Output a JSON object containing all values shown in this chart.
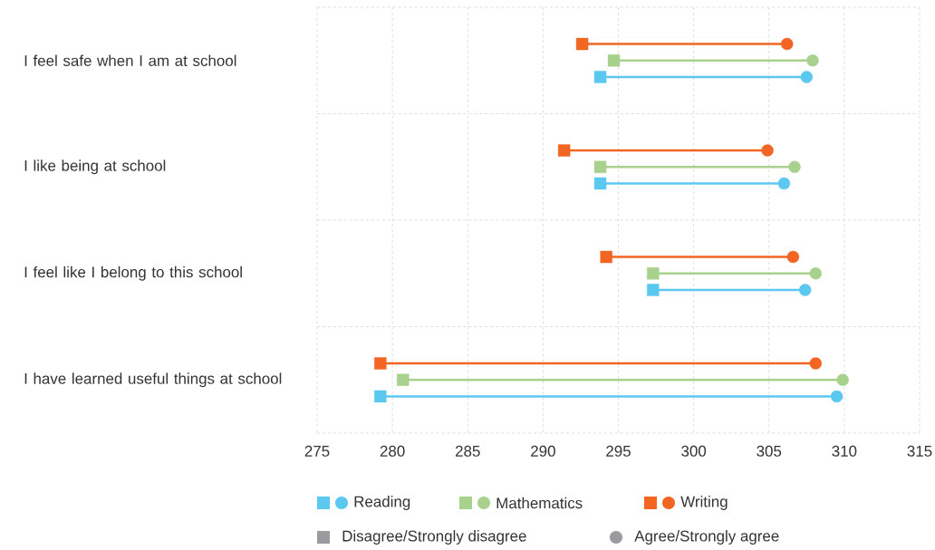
{
  "chart_data": {
    "type": "scatter",
    "orientation": "horizontal",
    "categories": [
      "I feel safe when I am at school",
      "I like being at school",
      "I feel like I belong to this school",
      "I have learned useful things at school"
    ],
    "series": [
      {
        "name": "Reading",
        "color": "#5bc8f0",
        "marker": "square",
        "values": [
          293.8,
          293.8,
          297.3,
          279.2
        ]
      },
      {
        "color": "#5bc8f0",
        "marker": "circle",
        "values": [
          307.5,
          306.0,
          307.4,
          309.5
        ]
      },
      {
        "name": "Mathematics",
        "color": "#a9d18e",
        "marker": "square",
        "values": [
          294.7,
          293.8,
          297.3,
          280.7
        ]
      },
      {
        "color": "#a9d18e",
        "marker": "circle",
        "values": [
          307.9,
          306.7,
          308.1,
          309.9
        ]
      },
      {
        "name": "Writing",
        "color": "#f26522",
        "marker": "square",
        "values": [
          292.6,
          291.4,
          294.2,
          279.2
        ]
      },
      {
        "color": "#f26522",
        "marker": "circle",
        "values": [
          306.2,
          304.9,
          306.6,
          308.1
        ]
      }
    ],
    "xlim": [
      275,
      315
    ],
    "xticks": [
      275,
      280,
      285,
      290,
      295,
      300,
      305,
      310,
      315
    ],
    "grid": "x",
    "legend": "bottom",
    "annotations": [
      "Disagree/Strongly disagree",
      "Agree/Strongly agree"
    ]
  }
}
